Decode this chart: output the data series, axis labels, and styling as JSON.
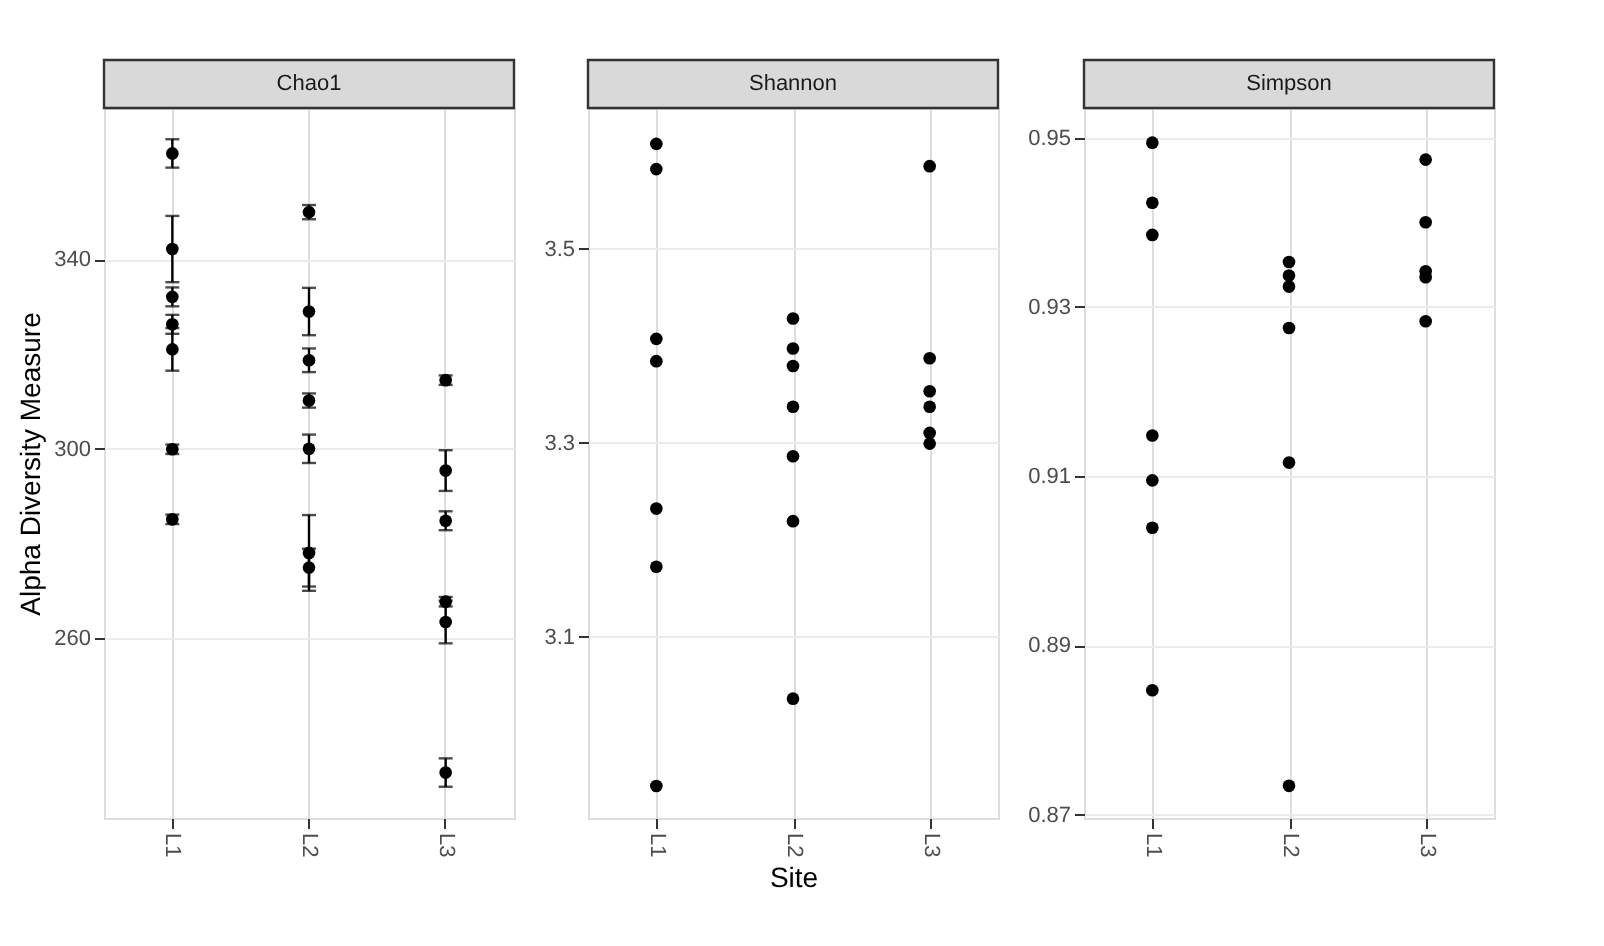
{
  "chart_data": [
    {
      "type": "scatter",
      "title": "Chao1",
      "ylabel": "Alpha Diversity Measure",
      "categories": [
        "L1",
        "L2",
        "L3"
      ],
      "ylim": [
        222,
        372
      ],
      "yticks": [
        260,
        300,
        340
      ],
      "grid": true,
      "marker": "circle",
      "series": [
        {
          "color": "#000000",
          "x": [
            "L1",
            "L1",
            "L1",
            "L1",
            "L1",
            "L1",
            "L1",
            "L2",
            "L2",
            "L2",
            "L2",
            "L2",
            "L2",
            "L2",
            "L3",
            "L3",
            "L3",
            "L3",
            "L3",
            "L3"
          ],
          "values": [
            362.4,
            342.2,
            332.1,
            326.3,
            321.0,
            299.9,
            285.1,
            350.0,
            329.0,
            318.7,
            310.2,
            300.0,
            278.0,
            274.9,
            314.5,
            295.4,
            284.8,
            267.7,
            263.4,
            231.6
          ],
          "errors": [
            3,
            7,
            2,
            2,
            4.5,
            1,
            1,
            1.5,
            5,
            2.5,
            1.5,
            3,
            8,
            4,
            1,
            4.3,
            2,
            1,
            4.5,
            3
          ]
        }
      ]
    },
    {
      "type": "scatter",
      "title": "Shannon",
      "xlabel": "Site",
      "categories": [
        "L1",
        "L2",
        "L3"
      ],
      "ylim": [
        2.913,
        3.645
      ],
      "yticks": [
        3.1,
        3.3,
        3.5
      ],
      "grid": true,
      "marker": "circle",
      "series": [
        {
          "color": "#000000",
          "x": [
            "L1",
            "L1",
            "L1",
            "L1",
            "L1",
            "L1",
            "L1",
            "L2",
            "L2",
            "L2",
            "L2",
            "L2",
            "L2",
            "L2",
            "L3",
            "L3",
            "L3",
            "L3",
            "L3",
            "L3"
          ],
          "values": [
            3.608,
            3.582,
            3.407,
            3.384,
            3.232,
            3.172,
            2.946,
            3.428,
            3.397,
            3.379,
            3.337,
            3.286,
            3.219,
            3.036,
            3.585,
            3.387,
            3.353,
            3.337,
            3.31,
            3.299
          ]
        }
      ]
    },
    {
      "type": "scatter",
      "title": "Simpson",
      "categories": [
        "L1",
        "L2",
        "L3"
      ],
      "ylim": [
        0.8696,
        0.9535
      ],
      "yticks": [
        0.87,
        0.89,
        0.91,
        0.93,
        0.95
      ],
      "grid": true,
      "marker": "circle",
      "series": [
        {
          "color": "#000000",
          "x": [
            "L1",
            "L1",
            "L1",
            "L1",
            "L1",
            "L1",
            "L1",
            "L2",
            "L2",
            "L2",
            "L2",
            "L2",
            "L2",
            "L3",
            "L3",
            "L3",
            "L3",
            "L3"
          ],
          "values": [
            0.9494,
            0.9423,
            0.9385,
            0.9148,
            0.9095,
            0.9039,
            0.8847,
            0.9353,
            0.9337,
            0.9324,
            0.9275,
            0.9116,
            0.8734,
            0.9474,
            0.94,
            0.9342,
            0.9335,
            0.9283
          ]
        }
      ]
    }
  ]
}
